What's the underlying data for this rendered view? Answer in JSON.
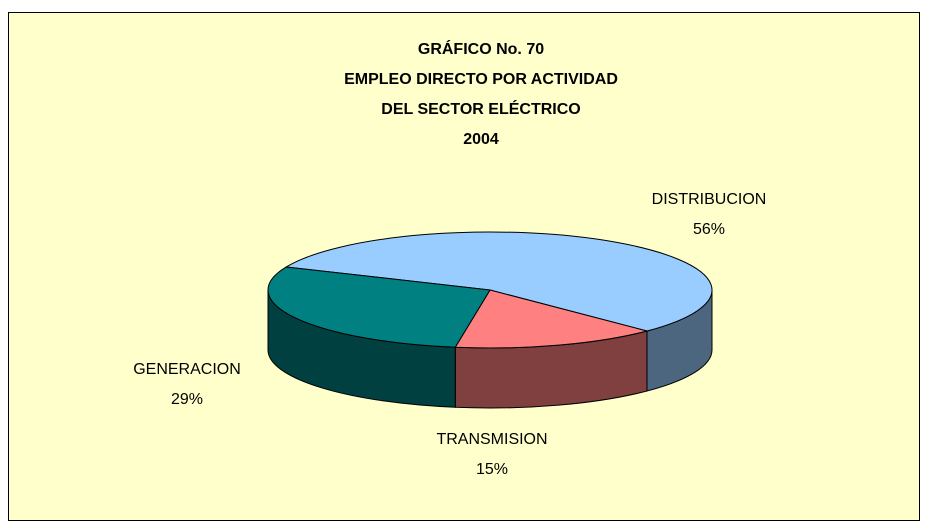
{
  "chart_data": {
    "type": "pie",
    "title": [
      "GRÁFICO  No. 70",
      "EMPLEO DIRECTO POR ACTIVIDAD",
      "DEL SECTOR ELÉCTRICO",
      "2004"
    ],
    "categories": [
      "DISTRIBUCION",
      "TRANSMISION",
      "GENERACION"
    ],
    "values": [
      56,
      15,
      29
    ],
    "value_labels": [
      "56%",
      "15%",
      "29%"
    ],
    "colors": [
      "#99ccff",
      "#ff8080",
      "#008080"
    ]
  }
}
